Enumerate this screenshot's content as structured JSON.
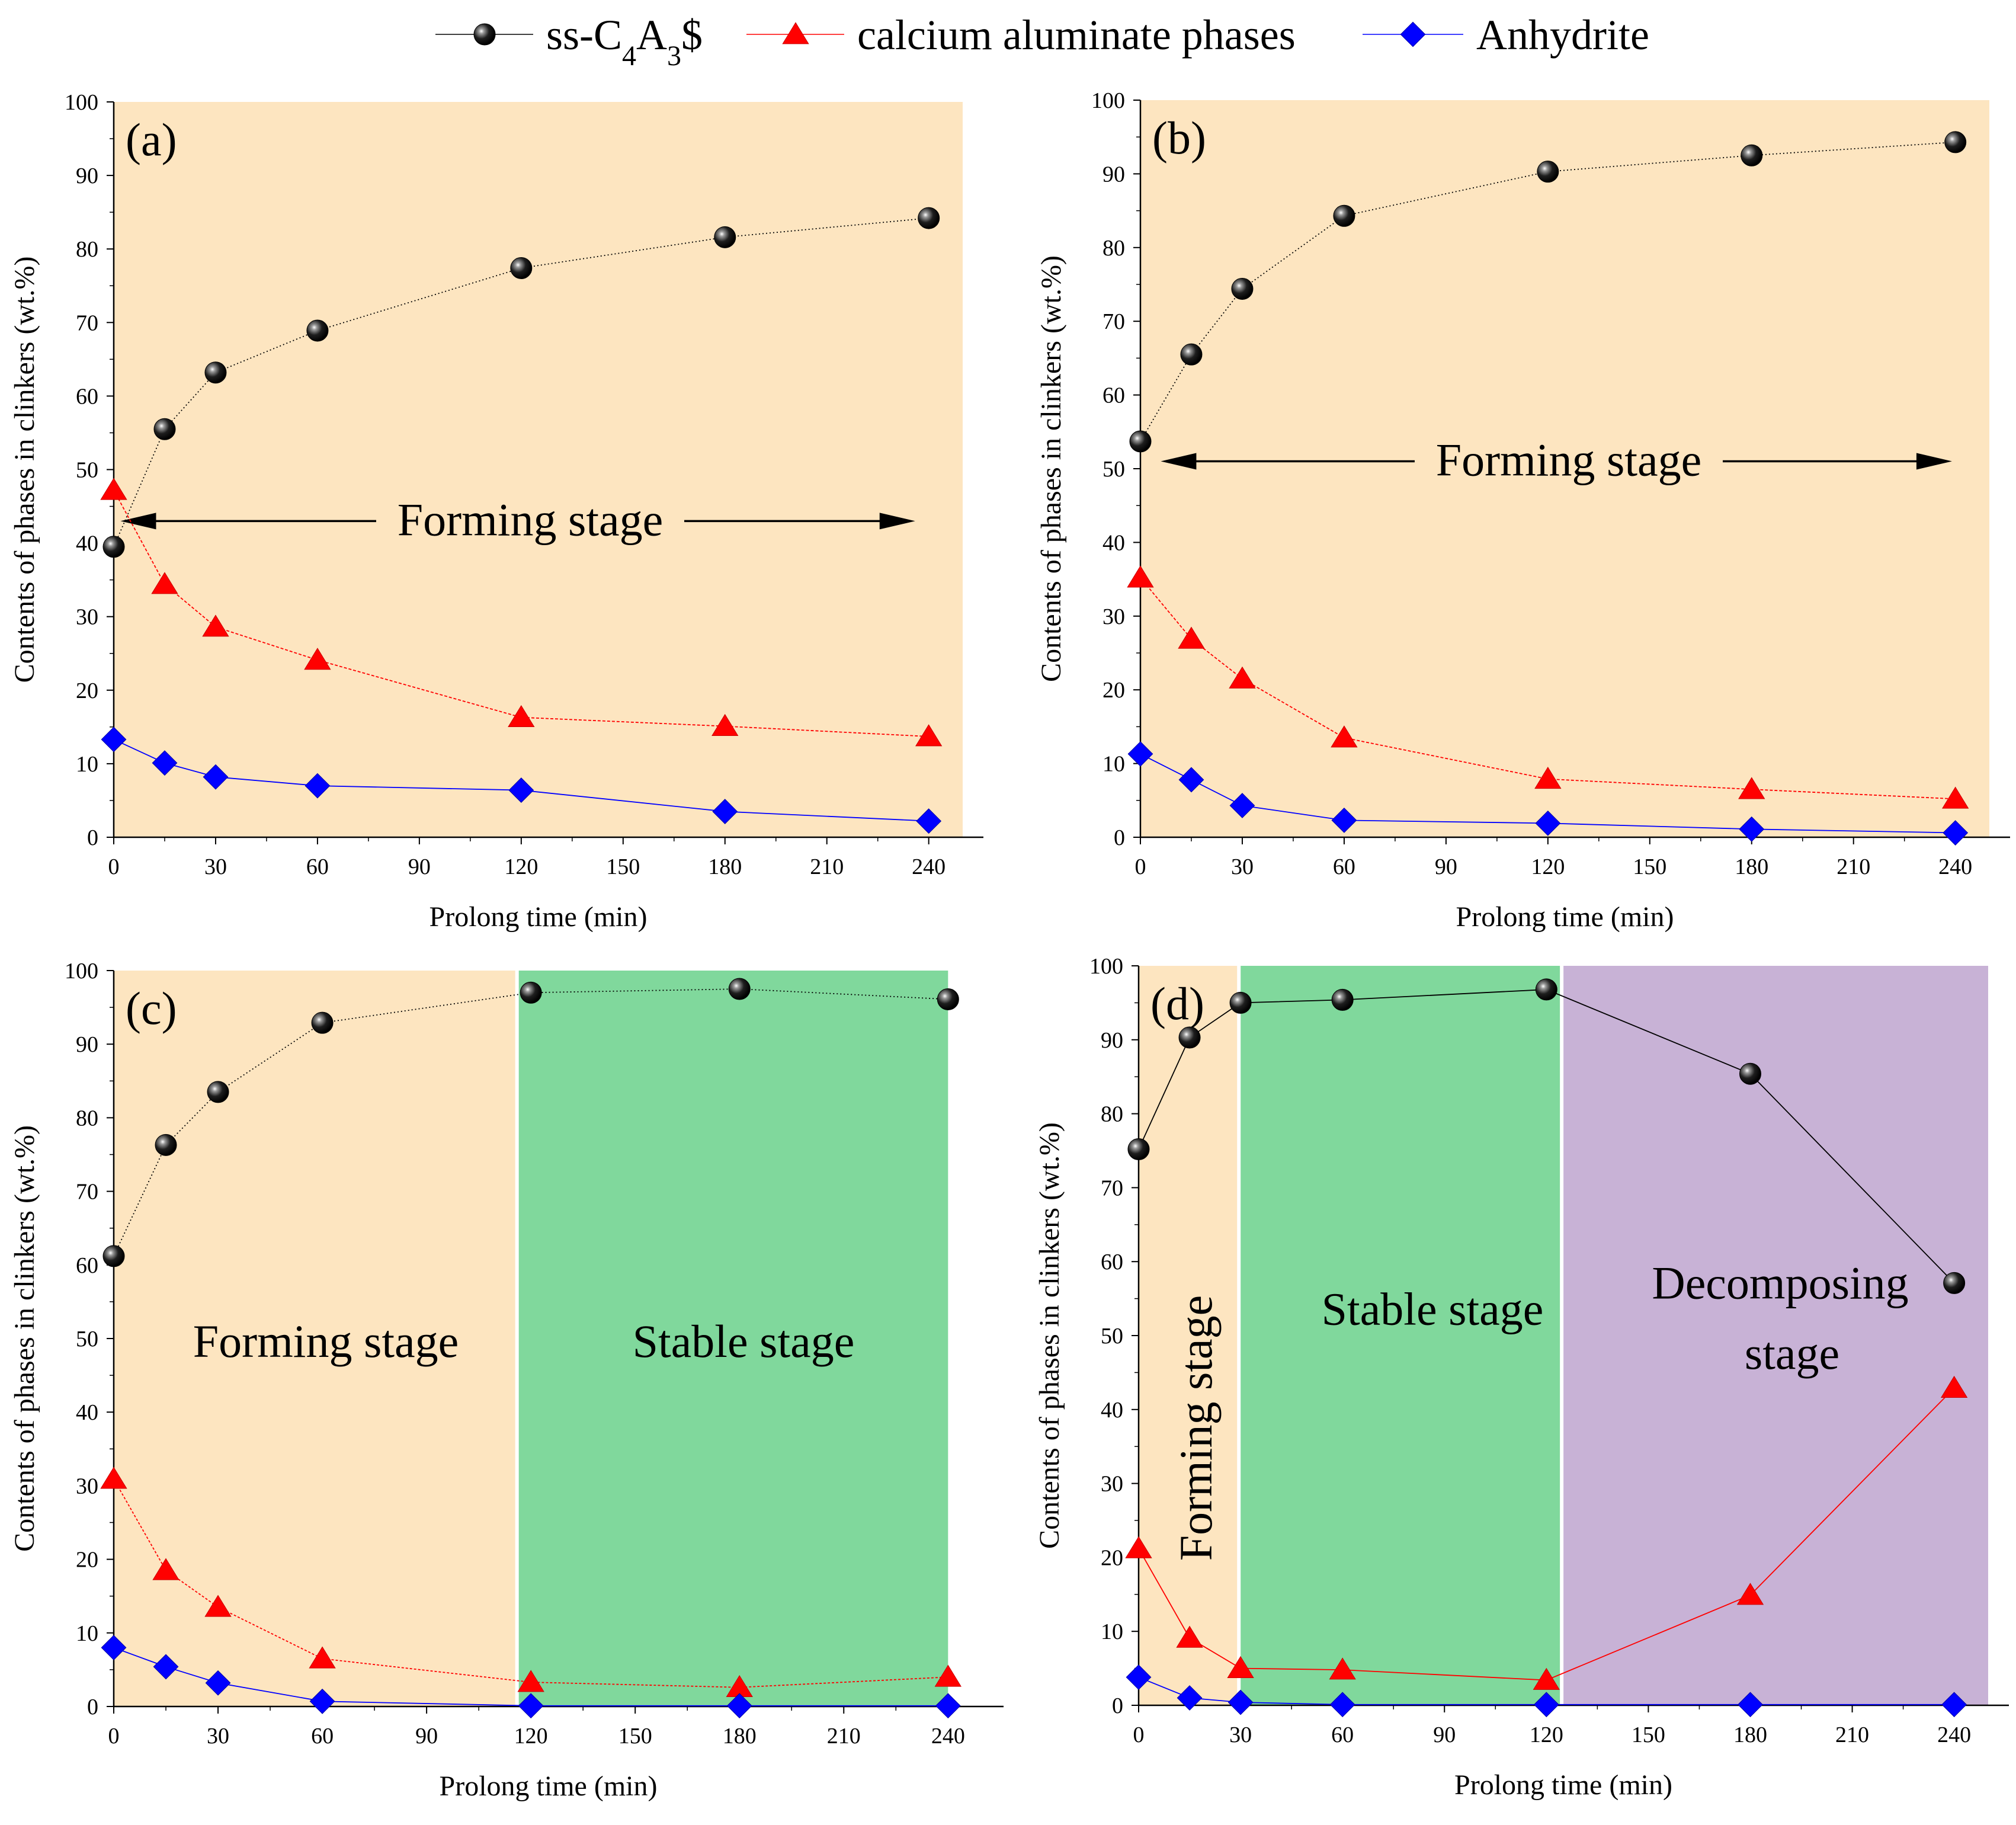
{
  "legend": [
    {
      "name": "ss-C",
      "sub1": "4",
      "mid": "A",
      "sub2": "3",
      "tail": "$",
      "color": "#000000",
      "line_color": "#000000",
      "marker": "sphere"
    },
    {
      "name": "calcium aluminate phases",
      "color": "#ff0000",
      "line_color": "#ff0000",
      "marker": "triangle"
    },
    {
      "name": "Anhydrite",
      "color": "#0000ff",
      "line_color": "#0000ff",
      "marker": "diamond"
    }
  ],
  "colors": {
    "forming": "#fde5c0",
    "stable": "#80d89c",
    "decomposing": "#c8b2d6"
  },
  "chart_data": [
    {
      "panel": "(a)",
      "type": "line",
      "xlabel": "Prolong time (min)",
      "ylabel": "Contents of phases in clinkers (wt.%)",
      "xlim": [
        0,
        250
      ],
      "ylim": [
        0,
        100
      ],
      "xticks": [
        0,
        30,
        60,
        90,
        120,
        150,
        180,
        210,
        240
      ],
      "yticks": [
        0,
        10,
        20,
        30,
        40,
        50,
        60,
        70,
        80,
        90,
        100
      ],
      "x": [
        0,
        15,
        30,
        60,
        120,
        180,
        240
      ],
      "series": [
        {
          "name": "ss-C4A3$",
          "values": [
            39.5,
            55.5,
            63.2,
            68.9,
            77.4,
            81.6,
            84.2
          ]
        },
        {
          "name": "calcium aluminate phases",
          "values": [
            47.2,
            34.4,
            28.6,
            24.1,
            16.3,
            15.1,
            13.7
          ]
        },
        {
          "name": "Anhydrite",
          "values": [
            13.3,
            10.1,
            8.2,
            7.0,
            6.4,
            3.5,
            2.2
          ]
        }
      ],
      "stages": [
        {
          "label": "Forming stage",
          "from": 0,
          "to": 250,
          "color": "forming"
        }
      ],
      "annotation": {
        "text": "Forming stage",
        "arrow_y": 43,
        "arrow_from": 2,
        "arrow_to": 236
      }
    },
    {
      "panel": "(b)",
      "type": "line",
      "xlabel": "Prolong time (min)",
      "ylabel": "Contents of phases in clinkers (wt.%)",
      "xlim": [
        0,
        250
      ],
      "ylim": [
        0,
        100
      ],
      "xticks": [
        0,
        30,
        60,
        90,
        120,
        150,
        180,
        210,
        240
      ],
      "yticks": [
        0,
        10,
        20,
        30,
        40,
        50,
        60,
        70,
        80,
        90,
        100
      ],
      "x": [
        0,
        15,
        30,
        60,
        120,
        180,
        240
      ],
      "series": [
        {
          "name": "ss-C4A3$",
          "values": [
            53.7,
            65.5,
            74.4,
            84.3,
            90.3,
            92.5,
            94.3
          ]
        },
        {
          "name": "calcium aluminate phases",
          "values": [
            35.2,
            26.9,
            21.5,
            13.5,
            7.9,
            6.5,
            5.2
          ]
        },
        {
          "name": "Anhydrite",
          "values": [
            11.3,
            7.8,
            4.3,
            2.3,
            1.9,
            1.1,
            0.6
          ]
        }
      ],
      "stages": [
        {
          "label": "Forming stage",
          "from": 0,
          "to": 250,
          "color": "forming"
        }
      ],
      "annotation": {
        "text": "Forming stage",
        "arrow_y": 51,
        "arrow_from": 6,
        "arrow_to": 239
      }
    },
    {
      "panel": "(c)",
      "type": "line",
      "xlabel": "Prolong time (min)",
      "ylabel": "Contents of phases in clinkers (wt.%)",
      "xlim": [
        0,
        250
      ],
      "ylim": [
        0,
        100
      ],
      "xticks": [
        0,
        30,
        60,
        90,
        120,
        150,
        180,
        210,
        240
      ],
      "yticks": [
        0,
        10,
        20,
        30,
        40,
        50,
        60,
        70,
        80,
        90,
        100
      ],
      "x": [
        0,
        15,
        30,
        60,
        120,
        180,
        240
      ],
      "series": [
        {
          "name": "ss-C4A3$",
          "values": [
            61.2,
            76.3,
            83.5,
            92.9,
            97.0,
            97.5,
            96.1
          ]
        },
        {
          "name": "calcium aluminate phases",
          "values": [
            30.9,
            18.5,
            13.5,
            6.5,
            3.3,
            2.6,
            4.0
          ]
        },
        {
          "name": "Anhydrite",
          "values": [
            8.0,
            5.4,
            3.2,
            0.7,
            0.1,
            0.1,
            0.1
          ]
        }
      ],
      "stages": [
        {
          "label": "Forming stage",
          "from": 0,
          "to": 116,
          "color": "forming"
        },
        {
          "label": "Stable stage",
          "from": 116,
          "to": 240,
          "color": "stable"
        }
      ]
    },
    {
      "panel": "(d)",
      "type": "line",
      "xlabel": "Prolong time (min)",
      "ylabel": "Contents of phases in clinkers (wt.%)",
      "xlim": [
        0,
        250
      ],
      "ylim": [
        0,
        100
      ],
      "xticks": [
        0,
        30,
        60,
        90,
        120,
        150,
        180,
        210,
        240
      ],
      "yticks": [
        0,
        10,
        20,
        30,
        40,
        50,
        60,
        70,
        80,
        90,
        100
      ],
      "x": [
        0,
        15,
        30,
        60,
        120,
        180,
        240
      ],
      "series": [
        {
          "name": "ss-C4A3$",
          "values": [
            75.2,
            90.3,
            95.0,
            95.4,
            96.8,
            85.4,
            57.1
          ]
        },
        {
          "name": "calcium aluminate phases",
          "values": [
            21.2,
            9.1,
            5.0,
            4.8,
            3.4,
            14.9,
            42.9
          ]
        },
        {
          "name": "Anhydrite",
          "values": [
            3.8,
            1.0,
            0.4,
            0.1,
            0.1,
            0.1,
            0.1
          ]
        }
      ],
      "stages": [
        {
          "label": "Forming stage",
          "from": 0,
          "to": 29.5,
          "color": "forming"
        },
        {
          "label": "Stable stage",
          "from": 29.5,
          "to": 124.5,
          "color": "stable"
        },
        {
          "label": "Decomposing stage",
          "from": 124.5,
          "to": 250,
          "color": "decomposing"
        }
      ]
    }
  ]
}
